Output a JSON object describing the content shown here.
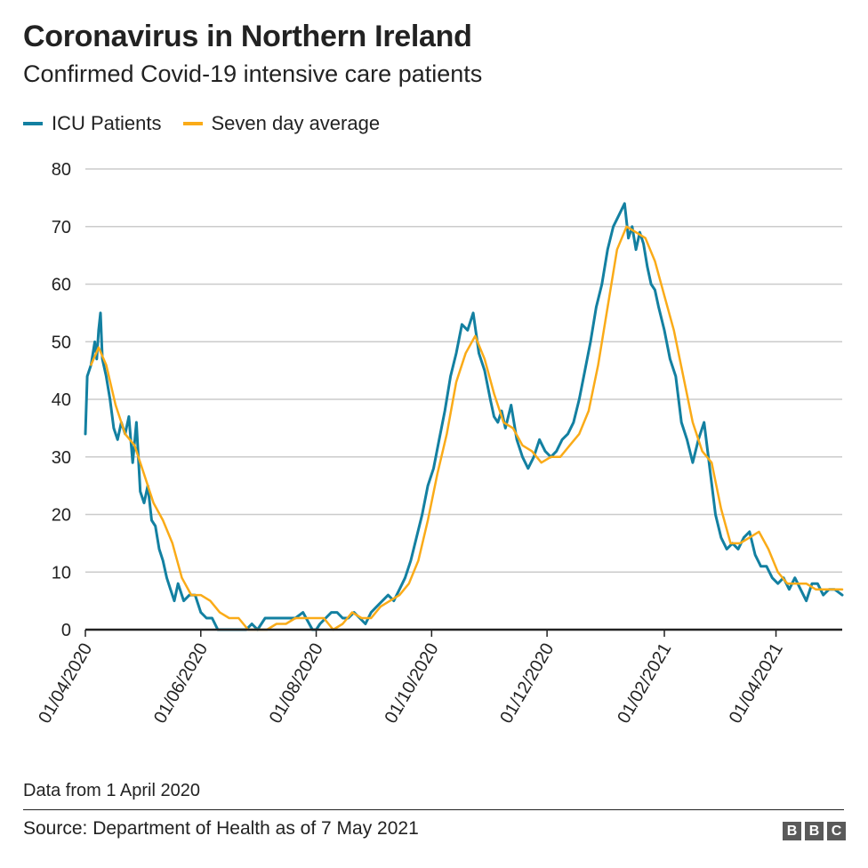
{
  "chart_data": {
    "type": "line",
    "title": "Coronavirus in Northern Ireland",
    "subtitle": "Confirmed Covid-19 intensive care patients",
    "xlabel": "",
    "ylabel": "",
    "ylim": [
      0,
      80
    ],
    "yticks": [
      0,
      10,
      20,
      30,
      40,
      50,
      60,
      70,
      80
    ],
    "xlim": [
      "2020-04-01",
      "2021-05-06"
    ],
    "xticks": [
      {
        "date": "2020-04-01",
        "label": "01/04/2020"
      },
      {
        "date": "2020-06-01",
        "label": "01/06/2020"
      },
      {
        "date": "2020-08-01",
        "label": "01/08/2020"
      },
      {
        "date": "2020-10-01",
        "label": "01/10/2020"
      },
      {
        "date": "2020-12-01",
        "label": "01/12/2020"
      },
      {
        "date": "2021-02-01",
        "label": "01/02/2021"
      },
      {
        "date": "2021-04-01",
        "label": "01/04/2021"
      }
    ],
    "grid": "horizontal",
    "legend_position": "top-left",
    "series": [
      {
        "name": "ICU Patients",
        "color": "#1380A1",
        "x": [
          "2020-04-01",
          "2020-04-02",
          "2020-04-04",
          "2020-04-06",
          "2020-04-07",
          "2020-04-08",
          "2020-04-09",
          "2020-04-10",
          "2020-04-12",
          "2020-04-14",
          "2020-04-16",
          "2020-04-18",
          "2020-04-20",
          "2020-04-22",
          "2020-04-24",
          "2020-04-26",
          "2020-04-28",
          "2020-04-30",
          "2020-05-02",
          "2020-05-04",
          "2020-05-06",
          "2020-05-08",
          "2020-05-10",
          "2020-05-12",
          "2020-05-14",
          "2020-05-16",
          "2020-05-18",
          "2020-05-20",
          "2020-05-23",
          "2020-05-26",
          "2020-05-29",
          "2020-06-01",
          "2020-06-04",
          "2020-06-07",
          "2020-06-10",
          "2020-06-13",
          "2020-06-16",
          "2020-06-19",
          "2020-06-22",
          "2020-06-25",
          "2020-06-28",
          "2020-07-01",
          "2020-07-05",
          "2020-07-09",
          "2020-07-13",
          "2020-07-17",
          "2020-07-21",
          "2020-07-25",
          "2020-07-30",
          "2020-08-01",
          "2020-08-03",
          "2020-08-06",
          "2020-08-09",
          "2020-08-12",
          "2020-08-15",
          "2020-08-18",
          "2020-08-21",
          "2020-08-24",
          "2020-08-27",
          "2020-08-30",
          "2020-09-02",
          "2020-09-05",
          "2020-09-08",
          "2020-09-11",
          "2020-09-14",
          "2020-09-17",
          "2020-09-20",
          "2020-09-23",
          "2020-09-26",
          "2020-09-29",
          "2020-10-02",
          "2020-10-05",
          "2020-10-08",
          "2020-10-11",
          "2020-10-14",
          "2020-10-17",
          "2020-10-20",
          "2020-10-23",
          "2020-10-26",
          "2020-10-29",
          "2020-11-01",
          "2020-11-03",
          "2020-11-05",
          "2020-11-07",
          "2020-11-09",
          "2020-11-12",
          "2020-11-15",
          "2020-11-18",
          "2020-11-21",
          "2020-11-24",
          "2020-11-27",
          "2020-11-30",
          "2020-12-03",
          "2020-12-06",
          "2020-12-09",
          "2020-12-12",
          "2020-12-15",
          "2020-12-18",
          "2020-12-21",
          "2020-12-24",
          "2020-12-27",
          "2020-12-30",
          "2021-01-02",
          "2021-01-05",
          "2021-01-08",
          "2021-01-11",
          "2021-01-13",
          "2021-01-15",
          "2021-01-17",
          "2021-01-19",
          "2021-01-21",
          "2021-01-23",
          "2021-01-25",
          "2021-01-27",
          "2021-01-29",
          "2021-02-01",
          "2021-02-04",
          "2021-02-07",
          "2021-02-10",
          "2021-02-13",
          "2021-02-16",
          "2021-02-19",
          "2021-02-22",
          "2021-02-25",
          "2021-02-28",
          "2021-03-03",
          "2021-03-06",
          "2021-03-09",
          "2021-03-12",
          "2021-03-15",
          "2021-03-18",
          "2021-03-21",
          "2021-03-24",
          "2021-03-27",
          "2021-03-30",
          "2021-04-02",
          "2021-04-05",
          "2021-04-08",
          "2021-04-11",
          "2021-04-14",
          "2021-04-17",
          "2021-04-20",
          "2021-04-23",
          "2021-04-26",
          "2021-04-29",
          "2021-05-02",
          "2021-05-06"
        ],
        "values": [
          34,
          44,
          46,
          50,
          47,
          52,
          55,
          47,
          44,
          40,
          35,
          33,
          36,
          34,
          37,
          29,
          36,
          24,
          22,
          25,
          19,
          18,
          14,
          12,
          9,
          7,
          5,
          8,
          5,
          6,
          6,
          3,
          2,
          2,
          0,
          0,
          0,
          0,
          0,
          0,
          1,
          0,
          2,
          2,
          2,
          2,
          2,
          3,
          0,
          0,
          1,
          2,
          3,
          3,
          2,
          2,
          3,
          2,
          1,
          3,
          4,
          5,
          6,
          5,
          7,
          9,
          12,
          16,
          20,
          25,
          28,
          33,
          38,
          44,
          48,
          53,
          52,
          55,
          48,
          45,
          40,
          37,
          36,
          38,
          35,
          39,
          33,
          30,
          28,
          30,
          33,
          31,
          30,
          31,
          33,
          34,
          36,
          40,
          45,
          50,
          56,
          60,
          66,
          70,
          72,
          74,
          68,
          70,
          66,
          69,
          67,
          63,
          60,
          59,
          56,
          52,
          47,
          44,
          36,
          33,
          29,
          33,
          36,
          28,
          20,
          16,
          14,
          15,
          14,
          16,
          17,
          13,
          11,
          11,
          9,
          8,
          9,
          7,
          9,
          7,
          5,
          8,
          8,
          6,
          7,
          7,
          6
        ]
      },
      {
        "name": "Seven day average",
        "color": "#FAAB18",
        "x": [
          "2020-04-04",
          "2020-04-08",
          "2020-04-12",
          "2020-04-17",
          "2020-04-22",
          "2020-04-27",
          "2020-05-02",
          "2020-05-07",
          "2020-05-12",
          "2020-05-17",
          "2020-05-22",
          "2020-05-27",
          "2020-06-01",
          "2020-06-06",
          "2020-06-11",
          "2020-06-16",
          "2020-06-21",
          "2020-06-26",
          "2020-07-01",
          "2020-07-06",
          "2020-07-11",
          "2020-07-16",
          "2020-07-21",
          "2020-07-26",
          "2020-07-31",
          "2020-08-05",
          "2020-08-10",
          "2020-08-15",
          "2020-08-20",
          "2020-08-25",
          "2020-08-30",
          "2020-09-04",
          "2020-09-09",
          "2020-09-14",
          "2020-09-19",
          "2020-09-24",
          "2020-09-29",
          "2020-10-04",
          "2020-10-09",
          "2020-10-14",
          "2020-10-19",
          "2020-10-24",
          "2020-10-29",
          "2020-11-03",
          "2020-11-08",
          "2020-11-13",
          "2020-11-18",
          "2020-11-23",
          "2020-11-28",
          "2020-12-03",
          "2020-12-08",
          "2020-12-13",
          "2020-12-18",
          "2020-12-23",
          "2020-12-28",
          "2021-01-02",
          "2021-01-07",
          "2021-01-12",
          "2021-01-17",
          "2021-01-22",
          "2021-01-27",
          "2021-02-01",
          "2021-02-06",
          "2021-02-11",
          "2021-02-16",
          "2021-02-21",
          "2021-02-26",
          "2021-03-03",
          "2021-03-08",
          "2021-03-13",
          "2021-03-18",
          "2021-03-23",
          "2021-03-28",
          "2021-04-02",
          "2021-04-07",
          "2021-04-12",
          "2021-04-17",
          "2021-04-22",
          "2021-04-27",
          "2021-05-02",
          "2021-05-06"
        ],
        "values": [
          46,
          49,
          46,
          39,
          34,
          32,
          27,
          22,
          19,
          15,
          9,
          6,
          6,
          5,
          3,
          2,
          2,
          0,
          0,
          0,
          1,
          1,
          2,
          2,
          2,
          2,
          0,
          1,
          3,
          2,
          2,
          4,
          5,
          6,
          8,
          12,
          19,
          27,
          34,
          43,
          48,
          51,
          47,
          41,
          36,
          35,
          32,
          31,
          29,
          30,
          30,
          32,
          34,
          38,
          46,
          56,
          66,
          70,
          69,
          68,
          64,
          58,
          52,
          44,
          36,
          31,
          29,
          21,
          15,
          15,
          16,
          17,
          14,
          10,
          8,
          8,
          8,
          7,
          7,
          7,
          7
        ]
      }
    ]
  },
  "note": "Data from 1 April 2020",
  "source": "Source: Department of Health as of 7 May 2021",
  "logo": [
    "B",
    "B",
    "C"
  ],
  "colors": {
    "grid": "#cbcbcb",
    "axis": "#222222"
  }
}
